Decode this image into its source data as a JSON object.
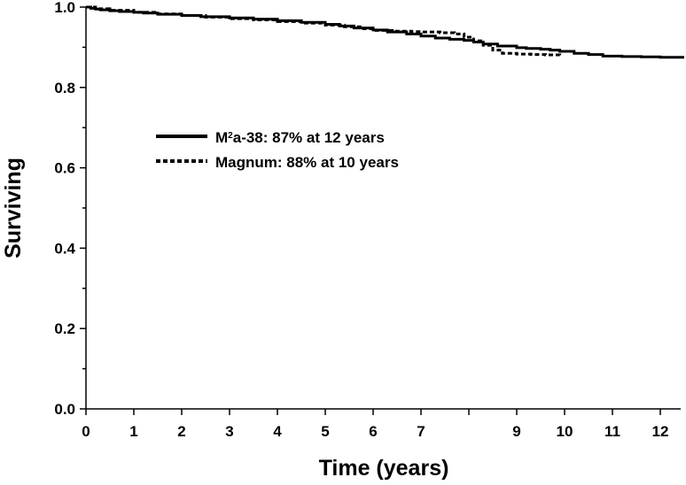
{
  "chart_data": {
    "type": "line",
    "title": "",
    "xlabel": "Time (years)",
    "ylabel": "Surviving",
    "xlim": [
      0,
      12.5
    ],
    "ylim": [
      0,
      1.0
    ],
    "x_ticks": [
      {
        "value": 0,
        "label": "0"
      },
      {
        "value": 1,
        "label": "1"
      },
      {
        "value": 2,
        "label": "2"
      },
      {
        "value": 3,
        "label": "3"
      },
      {
        "value": 4,
        "label": "4"
      },
      {
        "value": 5,
        "label": "5"
      },
      {
        "value": 6,
        "label": "6"
      },
      {
        "value": 7,
        "label": "7"
      },
      {
        "value": 8,
        "label": ""
      },
      {
        "value": 9,
        "label": "9"
      },
      {
        "value": 10,
        "label": "10"
      },
      {
        "value": 11,
        "label": "11"
      },
      {
        "value": 12,
        "label": "12"
      }
    ],
    "y_ticks": [
      {
        "value": 0.0,
        "label": "0.0"
      },
      {
        "value": 0.2,
        "label": "0.2"
      },
      {
        "value": 0.4,
        "label": "0.4"
      },
      {
        "value": 0.6,
        "label": "0.6"
      },
      {
        "value": 0.8,
        "label": "0.8"
      },
      {
        "value": 1.0,
        "label": "1.0"
      }
    ],
    "y_minor_ticks": [
      0.1,
      0.3,
      0.5,
      0.7,
      0.9
    ],
    "grid": false,
    "legend_position": "upper-left",
    "series": [
      {
        "name": "M2a-38: 87% at 12 years",
        "legend": {
          "base": "M",
          "sup": "2",
          "rest": "a-38: 87% at 12 years"
        },
        "style": "solid",
        "color": "#000000",
        "x": [
          0,
          0.1,
          0.2,
          0.3,
          0.5,
          0.7,
          1.0,
          1.2,
          1.5,
          2.0,
          2.4,
          3.0,
          3.5,
          4.0,
          4.5,
          5.0,
          5.3,
          5.6,
          6.0,
          6.3,
          6.7,
          7.0,
          7.3,
          7.6,
          7.9,
          8.1,
          8.3,
          8.6,
          9.0,
          9.2,
          9.5,
          9.7,
          9.9,
          10.2,
          10.5,
          10.8,
          11.2,
          11.6,
          12.0,
          12.5
        ],
        "y": [
          1.0,
          0.997,
          0.995,
          0.993,
          0.991,
          0.989,
          0.987,
          0.985,
          0.982,
          0.979,
          0.976,
          0.973,
          0.97,
          0.966,
          0.962,
          0.957,
          0.953,
          0.948,
          0.943,
          0.938,
          0.933,
          0.928,
          0.923,
          0.92,
          0.917,
          0.913,
          0.908,
          0.903,
          0.899,
          0.897,
          0.895,
          0.893,
          0.89,
          0.885,
          0.882,
          0.878,
          0.877,
          0.876,
          0.875,
          0.875
        ]
      },
      {
        "name": "Magnum: 88% at 10 years",
        "style": "dotted",
        "color": "#000000",
        "x": [
          0,
          0.2,
          0.5,
          1.0,
          1.5,
          2.0,
          2.5,
          3.0,
          3.5,
          4.0,
          4.5,
          5.0,
          5.4,
          5.8,
          6.0,
          6.4,
          6.8,
          7.0,
          7.4,
          7.7,
          7.9,
          8.1,
          8.3,
          8.5,
          8.7,
          9.0,
          9.3,
          9.6,
          9.9
        ],
        "y": [
          1.0,
          0.996,
          0.992,
          0.987,
          0.983,
          0.979,
          0.975,
          0.971,
          0.968,
          0.964,
          0.96,
          0.955,
          0.951,
          0.946,
          0.942,
          0.94,
          0.939,
          0.938,
          0.936,
          0.933,
          0.925,
          0.916,
          0.905,
          0.893,
          0.885,
          0.883,
          0.882,
          0.881,
          0.88
        ]
      }
    ]
  }
}
